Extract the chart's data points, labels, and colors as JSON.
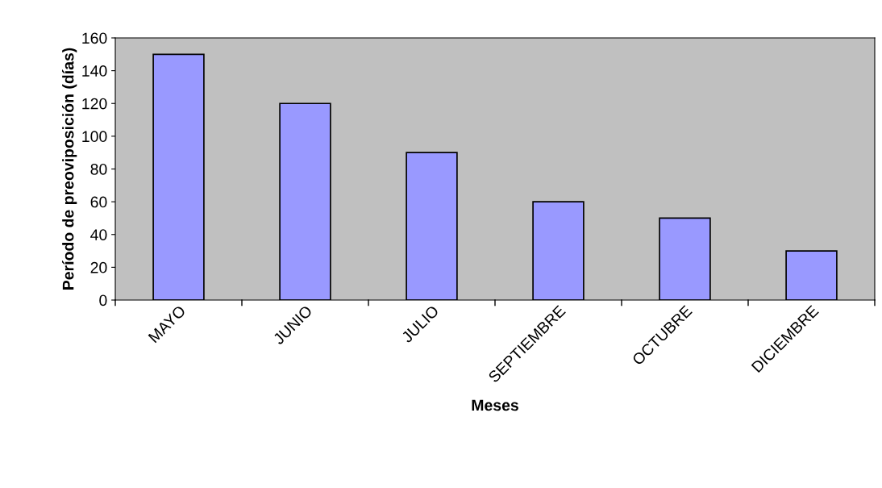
{
  "chart_data": {
    "type": "bar",
    "xlabel": "Meses",
    "ylabel": "Período de preoviposición (días)",
    "categories": [
      "MAYO",
      "JUNIO",
      "JULIO",
      "SEPTIEMBRE",
      "OCTUBRE",
      "DICIEMBRE"
    ],
    "values": [
      150,
      120,
      90,
      60,
      50,
      30
    ],
    "color": "#9999ff",
    "ylim": [
      0,
      160
    ],
    "yticks": [
      0,
      20,
      40,
      60,
      80,
      100,
      120,
      140,
      160
    ],
    "grid": false,
    "legend": false
  }
}
